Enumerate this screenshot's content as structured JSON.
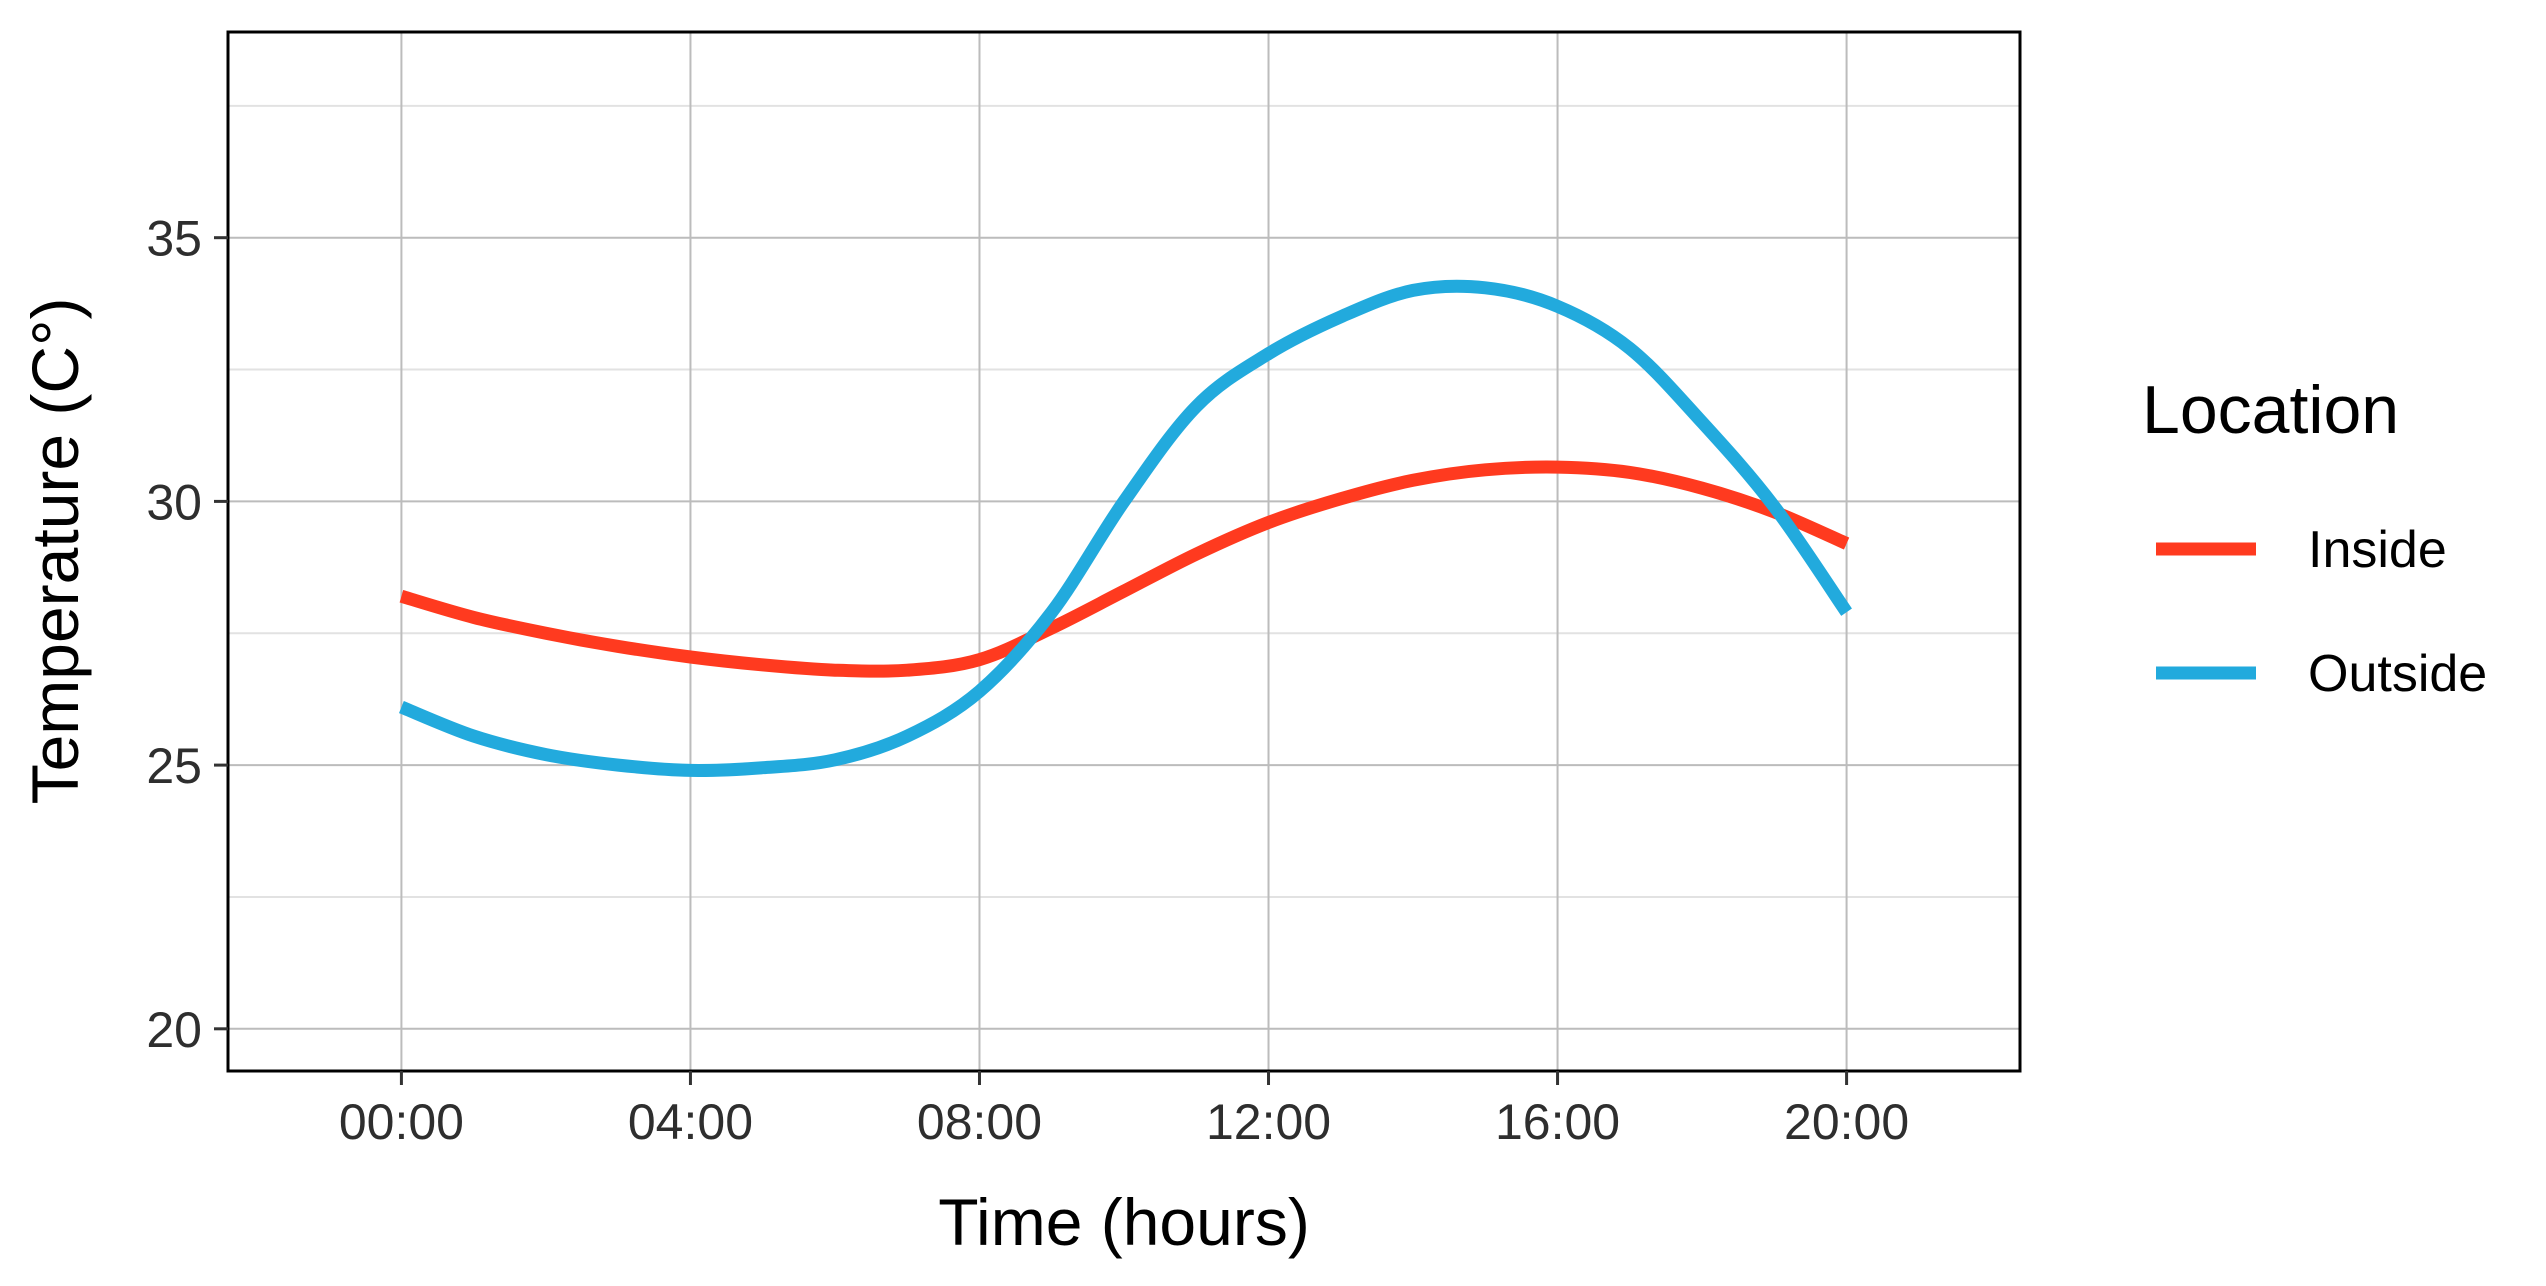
{
  "chart_data": {
    "type": "line",
    "xlabel": "Time (hours)",
    "ylabel": "Temperature (C°)",
    "x_unit": "hours",
    "xlim": [
      -2.4,
      22.4
    ],
    "ylim": [
      19.2,
      38.9
    ],
    "x_ticks": [
      0,
      4,
      8,
      12,
      16,
      20
    ],
    "x_tick_labels": [
      "00:00",
      "04:00",
      "08:00",
      "12:00",
      "16:00",
      "20:00"
    ],
    "y_ticks": [
      20,
      25,
      30,
      35
    ],
    "y_tick_labels": [
      "20",
      "25",
      "30",
      "35"
    ],
    "y_minor_ticks": [
      22.5,
      27.5,
      32.5,
      37.5
    ],
    "grid": true,
    "legend": {
      "title": "Location",
      "position": "right"
    },
    "x": [
      0,
      1,
      2,
      3,
      4,
      5,
      6,
      7,
      8,
      9,
      10,
      11,
      12,
      13,
      14,
      15,
      16,
      17,
      18,
      19,
      20
    ],
    "series": [
      {
        "name": "Inside",
        "color": "#FF3A1F",
        "values": [
          28.2,
          27.8,
          27.5,
          27.25,
          27.05,
          26.9,
          26.8,
          26.8,
          27.0,
          27.6,
          28.3,
          29.0,
          29.6,
          30.05,
          30.4,
          30.6,
          30.65,
          30.55,
          30.25,
          29.8,
          29.2
        ]
      },
      {
        "name": "Outside",
        "color": "#22AADD",
        "values": [
          26.1,
          25.55,
          25.2,
          25.0,
          24.9,
          24.95,
          25.1,
          25.55,
          26.4,
          27.9,
          30.0,
          31.8,
          32.8,
          33.5,
          34.0,
          34.05,
          33.7,
          32.9,
          31.5,
          29.9,
          27.9
        ]
      }
    ]
  }
}
